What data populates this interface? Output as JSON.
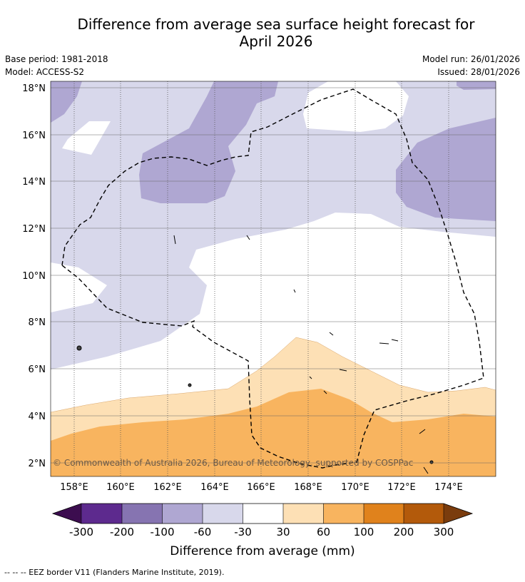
{
  "title": {
    "line1": "Difference from average sea surface height forecast for",
    "line2": "April 2026"
  },
  "meta": {
    "base_period": "Base period: 1981-2018",
    "model": "Model: ACCESS-S2",
    "model_run": "Model run: 26/01/2026",
    "issued": "Issued: 28/01/2026"
  },
  "map": {
    "lat_labels": [
      "18°N",
      "16°N",
      "14°N",
      "12°N",
      "10°N",
      "8°N",
      "6°N",
      "4°N",
      "2°N"
    ],
    "lon_labels": [
      "158°E",
      "160°E",
      "162°E",
      "164°E",
      "166°E",
      "168°E",
      "170°E",
      "172°E",
      "174°E"
    ],
    "copyright": "© Commonwealth of Australia 2026, Bureau of Meteorology, supported by COSPPac",
    "colors": {
      "lt_m300": "#3c0d4f",
      "m300_m200": "#5d2a8e",
      "m200_m100": "#8674b1",
      "m100_m60": "#afa7d2",
      "m60_m30": "#d8d8eb",
      "m30_30": "#ffffff",
      "p30_60": "#fde0b5",
      "p60_100": "#f8b45f",
      "p100_200": "#e0821c",
      "p200_300": "#b35a0b",
      "gt_300": "#7a3c0d"
    }
  },
  "colorbar": {
    "ticks": [
      "-300",
      "-200",
      "-100",
      "-60",
      "-30",
      "30",
      "60",
      "100",
      "200",
      "300"
    ],
    "colors": [
      "#5d2a8e",
      "#8674b1",
      "#afa7d2",
      "#d8d8eb",
      "#ffffff",
      "#fde0b5",
      "#f8b45f",
      "#e0821c",
      "#b35a0b"
    ],
    "under_color": "#3c0d4f",
    "over_color": "#7a3c0d",
    "label": "Difference from average (mm)"
  },
  "legend": {
    "eez": "--  --  -- EEZ border V11 (Flanders Marine Institute, 2019)."
  }
}
